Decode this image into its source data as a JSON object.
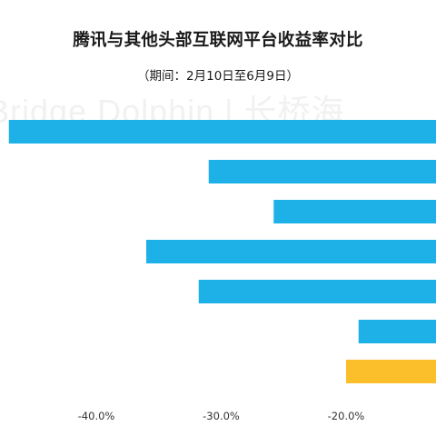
{
  "chart_data": {
    "type": "bar",
    "orientation": "horizontal",
    "title": "腾讯与其他头部互联网平台收益率对比",
    "subtitle": "（期间：2月10日至6月9日）",
    "watermark": "Bridge Dolphin | 长桥海",
    "x_ticks": [
      "-40.0%",
      "-30.0%",
      "-20.0%"
    ],
    "xlim": [
      -47,
      -4
    ],
    "values": [
      -47,
      -31,
      -25.8,
      -36,
      -31.8,
      -19,
      -20
    ],
    "bar_colors": [
      "#1eb1e8",
      "#1eb1e8",
      "#1eb1e8",
      "#1eb1e8",
      "#1eb1e8",
      "#1eb1e8",
      "#fbbf2c"
    ],
    "grid": false
  }
}
